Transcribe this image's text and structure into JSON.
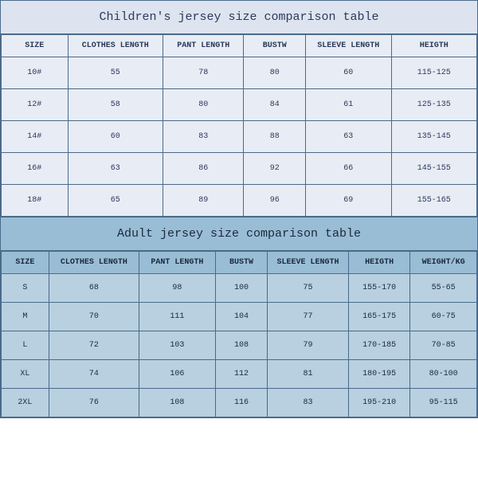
{
  "children": {
    "title": "Children's jersey size comparison table",
    "columns": [
      "SIZE",
      "CLOTHES LENGTH",
      "PANT LENGTH",
      "BUSTW",
      "SLEEVE LENGTH",
      "HEIGTH"
    ],
    "col_widths": [
      "14%",
      "20%",
      "17%",
      "13%",
      "18%",
      "18%"
    ],
    "rows": [
      [
        "10#",
        "55",
        "78",
        "80",
        "60",
        "115-125"
      ],
      [
        "12#",
        "58",
        "80",
        "84",
        "61",
        "125-135"
      ],
      [
        "14#",
        "60",
        "83",
        "88",
        "63",
        "135-145"
      ],
      [
        "16#",
        "63",
        "86",
        "92",
        "66",
        "145-155"
      ],
      [
        "18#",
        "65",
        "89",
        "96",
        "69",
        "155-165"
      ]
    ],
    "title_bg": "#dde4f0",
    "cell_bg": "#e8ecf4",
    "text_color": "#2a3a5a"
  },
  "adult": {
    "title": "Adult jersey size comparison table",
    "columns": [
      "SIZE",
      "CLOTHES LENGTH",
      "PANT LENGTH",
      "BUSTW",
      "SLEEVE LENGTH",
      "HEIGTH",
      "WEIGHT/KG"
    ],
    "col_widths": [
      "10%",
      "19%",
      "16%",
      "11%",
      "17%",
      "13%",
      "14%"
    ],
    "rows": [
      [
        "S",
        "68",
        "98",
        "100",
        "75",
        "155-170",
        "55-65"
      ],
      [
        "M",
        "70",
        "111",
        "104",
        "77",
        "165-175",
        "60-75"
      ],
      [
        "L",
        "72",
        "103",
        "108",
        "79",
        "170-185",
        "70-85"
      ],
      [
        "XL",
        "74",
        "106",
        "112",
        "81",
        "180-195",
        "80-100"
      ],
      [
        "2XL",
        "76",
        "108",
        "116",
        "83",
        "195-210",
        "95-115"
      ]
    ],
    "title_bg": "#9abdd6",
    "header_bg": "#9abdd6",
    "cell_bg": "#b8d0e0",
    "text_color": "#1a2a3a"
  },
  "border_color": "#4a6a8a",
  "font": "Courier New, monospace"
}
